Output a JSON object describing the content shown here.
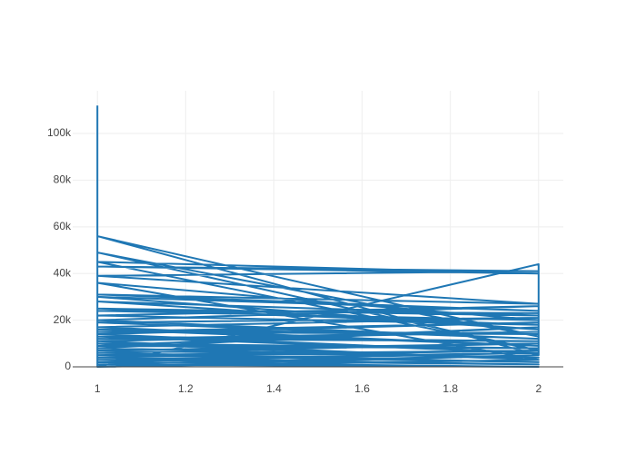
{
  "chart_data": {
    "type": "line",
    "color": "#1f77b4",
    "x": [
      1,
      1,
      2,
      2,
      1,
      2,
      1,
      2,
      1,
      2,
      1,
      2,
      1,
      2,
      1,
      2,
      1,
      2,
      1,
      2,
      1,
      2,
      1,
      2,
      1,
      2,
      1,
      2,
      1,
      2,
      1,
      2,
      1,
      2,
      1,
      2,
      1,
      2,
      1,
      2,
      1,
      2,
      1,
      2,
      1,
      2,
      1,
      2,
      1,
      2,
      1,
      2,
      1,
      2,
      1,
      2,
      1,
      2,
      1,
      2,
      1,
      2,
      1,
      2,
      1,
      2,
      1,
      2
    ],
    "values": [
      112000,
      0,
      44000,
      5000,
      56000,
      13000,
      49000,
      7000,
      45000,
      40000,
      43000,
      41000,
      39000,
      27000,
      31000,
      24000,
      30000,
      16000,
      28000,
      22000,
      25000,
      18000,
      22000,
      26000,
      20000,
      12000,
      19000,
      21000,
      17000,
      9000,
      16000,
      14000,
      15000,
      19000,
      14000,
      6000,
      13000,
      11000,
      12000,
      15000,
      11000,
      3000,
      10000,
      8000,
      9000,
      17000,
      8000,
      4000,
      7000,
      10000,
      6000,
      2000,
      5000,
      7000,
      4000,
      1000,
      3000,
      6000,
      2000,
      0,
      1000,
      5000,
      0,
      3000,
      36000,
      20000,
      24000,
      23000
    ],
    "xlim": [
      0.944,
      2.056
    ],
    "ylim": [
      0,
      118300
    ],
    "xticks": [
      1,
      1.2,
      1.4,
      1.6,
      1.8,
      2
    ],
    "yticks": [
      0,
      {
        "value": 20000,
        "label": "20k"
      },
      {
        "value": 40000,
        "label": "40k"
      },
      {
        "value": 60000,
        "label": "60k"
      },
      {
        "value": 80000,
        "label": "80k"
      },
      {
        "value": 100000,
        "label": "100k"
      }
    ],
    "grid": true
  }
}
